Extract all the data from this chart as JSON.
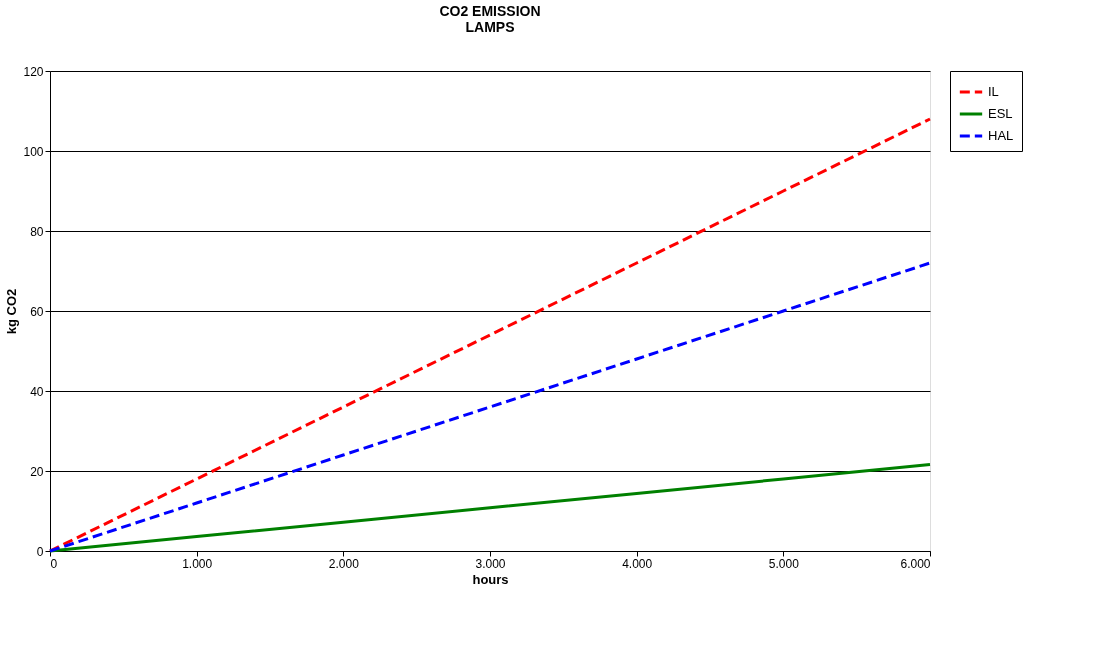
{
  "chart_data": {
    "type": "line",
    "title": "CO2 EMISSION\nLAMPS",
    "xlabel": "hours",
    "ylabel": "kg CO2",
    "x": [
      0,
      1000,
      2000,
      3000,
      4000,
      5000,
      6000
    ],
    "series": [
      {
        "name": "IL",
        "color": "#ff0000",
        "line_style": "dashed",
        "values": [
          0,
          18,
          36,
          54,
          72,
          90,
          108
        ]
      },
      {
        "name": "ESL",
        "color": "#008000",
        "line_style": "solid",
        "values": [
          0,
          3.6,
          7.2,
          10.8,
          14.4,
          18,
          21.6
        ]
      },
      {
        "name": "HAL",
        "color": "#0000ff",
        "line_style": "dashed",
        "values": [
          0,
          12,
          24,
          36,
          48,
          60,
          72
        ]
      }
    ],
    "xlim": [
      0,
      6000
    ],
    "xticks": [
      0,
      {
        "value": 1000,
        "label": "1.000"
      },
      {
        "value": 2000,
        "label": "2.000"
      },
      {
        "value": 3000,
        "label": "3.000"
      },
      {
        "value": 4000,
        "label": "4.000"
      },
      {
        "value": 5000,
        "label": "5.000"
      },
      {
        "value": 6000,
        "label": "6.000"
      }
    ],
    "ylim": [
      0,
      120
    ],
    "yticks": [
      0,
      20,
      40,
      60,
      80,
      100,
      120
    ],
    "grid": "y",
    "legend": "right",
    "marker": "none"
  }
}
